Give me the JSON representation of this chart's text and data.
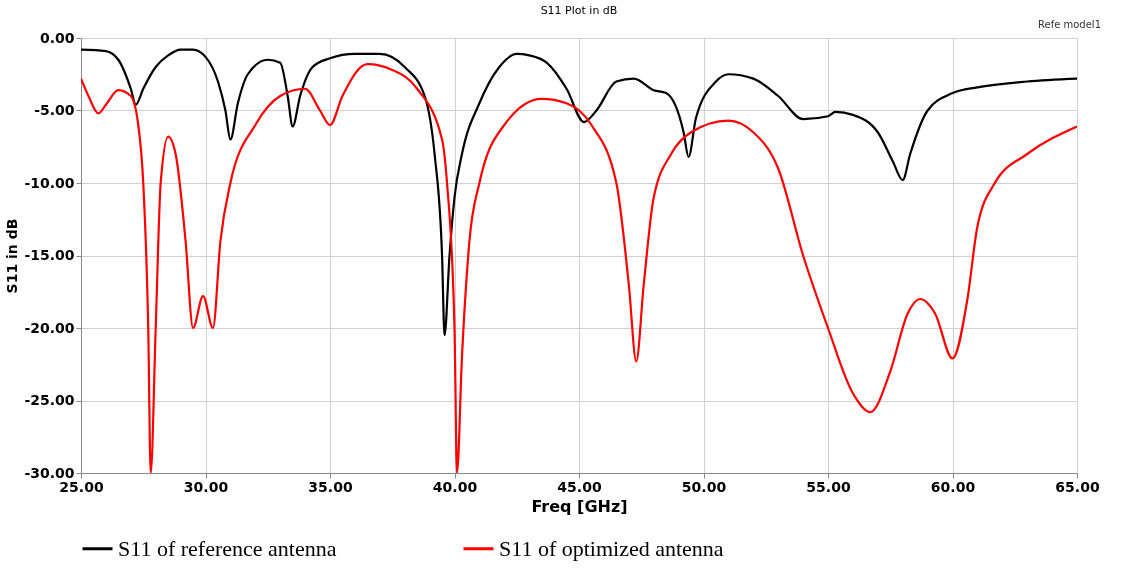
{
  "chart_data": {
    "type": "line",
    "title": "S11 Plot in dB",
    "xlabel": "Freq [GHz]",
    "ylabel": "S11 in dB",
    "annotations": [
      "Refe model1"
    ],
    "xlim": [
      25,
      65
    ],
    "xticks": [
      {
        "value": 25,
        "label": "25.00"
      },
      {
        "value": 30,
        "label": "30.00"
      },
      {
        "value": 35,
        "label": "35.00"
      },
      {
        "value": 40,
        "label": "40.00"
      },
      {
        "value": 45,
        "label": "45.00"
      },
      {
        "value": 50,
        "label": "50.00"
      },
      {
        "value": 55,
        "label": "55.00"
      },
      {
        "value": 60,
        "label": "60.00"
      },
      {
        "value": 65,
        "label": "65.00"
      }
    ],
    "ylim": [
      -30,
      0
    ],
    "yticks": [
      {
        "value": -30,
        "label": "-30.00"
      },
      {
        "value": -25,
        "label": "-25.00"
      },
      {
        "value": -20,
        "label": "-20.00"
      },
      {
        "value": -15,
        "label": "-15.00"
      },
      {
        "value": -10,
        "label": "-10.00"
      },
      {
        "value": -5,
        "label": "-5.00"
      },
      {
        "value": 0,
        "label": "0.00"
      }
    ],
    "grid": true,
    "legend": "bottom",
    "marker": "none",
    "line_style": "solid",
    "series": [
      {
        "name": "S11 of reference antenna",
        "color": "#000000",
        "x": [
          25,
          26,
          26.5,
          27,
          27.2,
          27.5,
          28,
          28.5,
          29,
          29.5,
          30,
          30.5,
          30.8,
          31,
          31.3,
          31.7,
          32.5,
          33,
          33.3,
          33.5,
          33.8,
          34.3,
          35,
          36,
          37,
          38,
          38.8,
          39.2,
          39.5,
          39.6,
          39.8,
          40,
          40.3,
          41,
          41.8,
          42.5,
          43,
          43.7,
          44.5,
          45.2,
          45.7,
          46.5,
          47.2,
          48,
          48.5,
          49.2,
          49.4,
          49.7,
          50.5,
          51,
          52,
          53,
          54,
          55,
          55.3,
          56,
          57,
          57.6,
          58,
          58.3,
          59,
          60,
          61,
          63,
          65
        ],
        "values": [
          -0.8,
          -0.9,
          -1.5,
          -3.5,
          -4.6,
          -3.5,
          -2.0,
          -1.2,
          -0.8,
          -0.8,
          -1.3,
          -3,
          -5,
          -7.0,
          -4.5,
          -2.5,
          -1.5,
          -1.7,
          -4,
          -6.1,
          -4,
          -2,
          -1.4,
          -1.1,
          -1.1,
          -2.0,
          -4,
          -8,
          -15,
          -20.5,
          -15,
          -11,
          -8,
          -4.5,
          -2,
          -1.1,
          -1.2,
          -1.7,
          -3.5,
          -5.8,
          -5,
          -3,
          -2.8,
          -3.6,
          -3.8,
          -6.5,
          -8.2,
          -5.5,
          -3,
          -2.5,
          -2.8,
          -4,
          -5.6,
          -5.4,
          -5.1,
          -5.3,
          -6.5,
          -8.5,
          -9.8,
          -8,
          -5,
          -3.8,
          -3.4,
          -3.0,
          -2.8
        ]
      },
      {
        "name": "S11 of optimized antenna",
        "color": "#ff0000",
        "x": [
          25,
          25.3,
          25.7,
          26,
          26.5,
          27,
          27.3,
          27.5,
          27.7,
          27.8,
          28,
          28.2,
          28.5,
          28.8,
          29.2,
          29.5,
          29.9,
          30.3,
          30.6,
          31,
          32,
          33,
          34,
          34.6,
          35,
          35.5,
          36.5,
          37.5,
          38.5,
          39.5,
          39.7,
          40,
          40.1,
          40.3,
          40.6,
          41,
          42,
          43.5,
          44.5,
          45.5,
          46.5,
          47,
          47.3,
          47.6,
          48,
          48.7,
          49.5,
          51,
          52,
          53,
          54,
          55,
          56,
          56.7,
          57.5,
          58.2,
          58.7,
          59.3,
          60,
          60.6,
          61,
          61.7,
          63,
          65
        ],
        "values": [
          -2.8,
          -4.0,
          -5.2,
          -4.6,
          -3.6,
          -4.0,
          -6,
          -10,
          -20,
          -30,
          -20,
          -10,
          -6.8,
          -8,
          -14,
          -20,
          -17.8,
          -20,
          -14,
          -10,
          -6,
          -4,
          -3.5,
          -5,
          -6,
          -4,
          -1.8,
          -2.2,
          -3.5,
          -7,
          -10,
          -20,
          -30,
          -22,
          -14,
          -10,
          -6,
          -4.2,
          -4.5,
          -6,
          -10,
          -17,
          -22.3,
          -17,
          -11,
          -8,
          -6.5,
          -5.7,
          -6.5,
          -9,
          -15,
          -20,
          -24.5,
          -25.8,
          -23,
          -19,
          -18,
          -19,
          -22.1,
          -18,
          -13,
          -10,
          -8,
          -6.1
        ]
      }
    ]
  }
}
